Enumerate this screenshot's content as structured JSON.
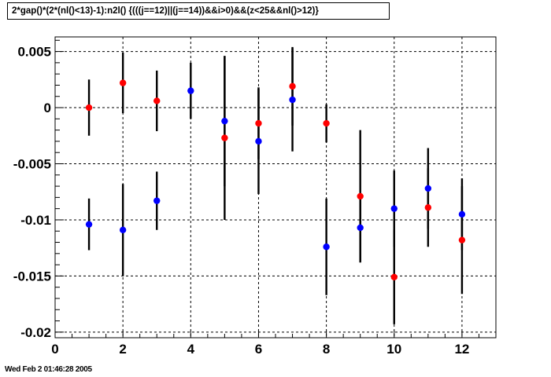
{
  "title": "2*gap()*(2*(nl()<13)-1):n2l() {(((j==12)||(j==14))&&i>0)&&(z<25&&nl()>12)}",
  "footer_timestamp": "Wed Feb  2 01:46:28 2005",
  "chart_data": {
    "type": "scatter",
    "title": "2*gap()*(2*(nl()<13)-1):n2l() {(((j==12)||(j==14))&&i>0)&&(z<25&&nl()>12)}",
    "xlabel": "",
    "ylabel": "",
    "xlim": [
      0,
      13
    ],
    "ylim": [
      -0.0205,
      0.0063
    ],
    "grid": true,
    "x_ticks": [
      "0",
      "2",
      "4",
      "6",
      "8",
      "10",
      "12"
    ],
    "y_ticks": [
      "0.005",
      "0",
      "-0.005",
      "-0.01",
      "-0.015",
      "-0.02"
    ],
    "error_bar_color": "#000000",
    "series": [
      {
        "color": "#ff0000",
        "points": [
          {
            "x": 1,
            "y": 0.0,
            "err": 0.0025
          },
          {
            "x": 2,
            "y": 0.0022,
            "err": 0.0027
          },
          {
            "x": 3,
            "y": 0.0006,
            "err": 0.0027
          },
          {
            "x": 5,
            "y": -0.0027,
            "err": 0.0073
          },
          {
            "x": 6,
            "y": -0.0014,
            "err": 0.0032
          },
          {
            "x": 7,
            "y": 0.0019,
            "err": 0.0035
          },
          {
            "x": 8,
            "y": -0.0014,
            "err": 0.0017
          },
          {
            "x": 9,
            "y": -0.0079,
            "err": 0.0059
          },
          {
            "x": 10,
            "y": -0.0151,
            "err": 0.0042
          },
          {
            "x": 11,
            "y": -0.0089,
            "err": 0.0035
          },
          {
            "x": 12,
            "y": -0.0118,
            "err": 0.0048
          }
        ]
      },
      {
        "color": "#0000ff",
        "points": [
          {
            "x": 1,
            "y": -0.0104,
            "err": 0.0023
          },
          {
            "x": 2,
            "y": -0.0109,
            "err": 0.0041
          },
          {
            "x": 3,
            "y": -0.0083,
            "err": 0.0026
          },
          {
            "x": 4,
            "y": 0.0015,
            "err": 0.0025
          },
          {
            "x": 5,
            "y": -0.0012,
            "err": 0.0058
          },
          {
            "x": 6,
            "y": -0.003,
            "err": 0.0047
          },
          {
            "x": 7,
            "y": 0.0007,
            "err": 0.0046
          },
          {
            "x": 8,
            "y": -0.0124,
            "err": 0.0043
          },
          {
            "x": 9,
            "y": -0.0107,
            "err": 0.003
          },
          {
            "x": 10,
            "y": -0.009,
            "err": 0.0034
          },
          {
            "x": 11,
            "y": -0.0072,
            "err": 0.0036
          },
          {
            "x": 12,
            "y": -0.0095,
            "err": 0.0032
          }
        ]
      }
    ]
  }
}
